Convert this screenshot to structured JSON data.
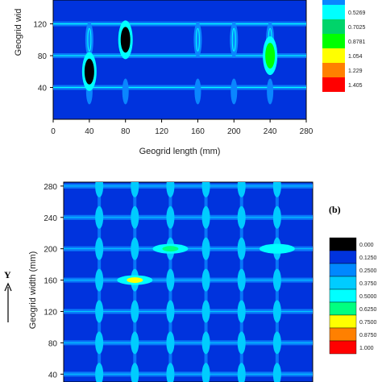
{
  "chart_data": [
    {
      "type": "heatmap",
      "panel_label": "",
      "xlabel": "Geogrid length (mm)",
      "ylabel": "Geogrid width (mm)",
      "ylabel_visible": "Geogrid wid",
      "xlim": [
        0,
        280
      ],
      "ylim": [
        0,
        150
      ],
      "x_ticks": [
        "0",
        "40",
        "80",
        "120",
        "160",
        "200",
        "240",
        "280"
      ],
      "y_ticks": [
        "40",
        "80",
        "120"
      ],
      "legend_values": [
        "0.5269",
        "0.7025",
        "0.8781",
        "1.054",
        "1.229",
        "1.405"
      ],
      "legend_colors": [
        "#00ffff",
        "#00d46a",
        "#00ff00",
        "#ffff00",
        "#ff8000",
        "#ff0000"
      ],
      "background_color": "#0033dd",
      "grid_x": [
        40,
        80,
        160,
        200,
        240
      ],
      "grid_y": [
        40,
        80,
        120
      ],
      "hotspots": [
        {
          "x": 40,
          "y": 60,
          "level": 1.405
        },
        {
          "x": 80,
          "y": 100,
          "level": 1.405
        },
        {
          "x": 240,
          "y": 80,
          "level": 0.8781
        }
      ]
    },
    {
      "type": "heatmap",
      "panel_label": "(b)",
      "xlabel": "",
      "ylabel": "Geogrid width (mm)",
      "axis_marker": "Y",
      "xlim": [
        0,
        280
      ],
      "ylim": [
        30,
        285
      ],
      "y_ticks": [
        "280",
        "240",
        "200",
        "160",
        "120",
        "80",
        "40"
      ],
      "legend_values": [
        "0.000",
        "0.1250",
        "0.2500",
        "0.3750",
        "0.5000",
        "0.6250",
        "0.7500",
        "0.8750",
        "1.000"
      ],
      "legend_colors": [
        "#000000",
        "#0033dd",
        "#0088ff",
        "#00ccff",
        "#00ffff",
        "#00ff80",
        "#ffff00",
        "#ff8000",
        "#ff0000"
      ],
      "background_color": "#0033dd",
      "grid_x": [
        40,
        80,
        120,
        160,
        200,
        240
      ],
      "grid_y": [
        40,
        80,
        120,
        160,
        200,
        240,
        280
      ],
      "hotspots": [
        {
          "x": 80,
          "y": 160,
          "level": 0.75
        },
        {
          "x": 120,
          "y": 200,
          "level": 0.625
        },
        {
          "x": 240,
          "y": 200,
          "level": 0.5
        }
      ]
    }
  ]
}
